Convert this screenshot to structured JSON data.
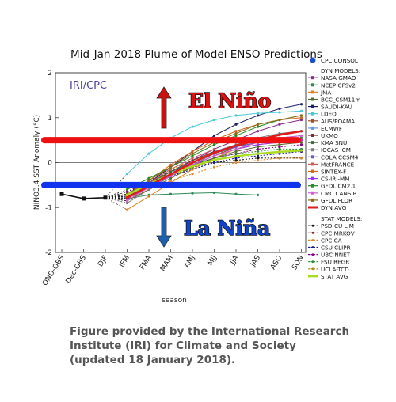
{
  "chart_data": {
    "type": "line",
    "title": "Mid-Jan 2018 Plume of Model ENSO Predictions",
    "xlabel": "season",
    "ylabel": "NINO3.4 SST Anomaly (°C)",
    "ylim": [
      -2,
      2
    ],
    "yticks": [
      "2",
      "1",
      "0",
      "-1",
      "-2"
    ],
    "categories": [
      "OND-OBS",
      "Dec-OBS",
      "DJF",
      "JFM",
      "FMA",
      "MAM",
      "AMJ",
      "MJJ",
      "JJA",
      "JAS",
      "ASO",
      "SON"
    ],
    "watermark": "IRI/CPC",
    "annotations": {
      "el_nino": "El Niño",
      "la_nina": "La Niña"
    },
    "thresholds": [
      {
        "value": 0.5,
        "color": "#ee1111"
      },
      {
        "value": -0.5,
        "color": "#1133ee"
      }
    ],
    "observed": {
      "name": "CPC CONSOL",
      "values": [
        -0.7,
        -0.8,
        -0.78
      ]
    },
    "legend_consol": "CPC CONSOL",
    "legend_dyn_header": "DYN MODELS:",
    "legend_stat_header": "STAT MODELS:",
    "dyn_series": [
      {
        "name": "NASA GMAO",
        "color": "#8a2b8a",
        "values": [
          -0.72,
          -0.55,
          -0.25,
          0.05,
          0.3,
          0.5,
          0.7,
          0.85,
          0.95
        ]
      },
      {
        "name": "NCEP CFSv2",
        "color": "#2e8b57",
        "values": [
          -0.8,
          -0.72,
          -0.7,
          -0.68,
          -0.67,
          -0.7,
          -0.72,
          null,
          null
        ]
      },
      {
        "name": "JMA",
        "color": "#e08020",
        "values": [
          -1.05,
          -0.75,
          -0.45,
          -0.15,
          0.1,
          0.3,
          0.45,
          null,
          null
        ]
      },
      {
        "name": "BCC_CSM11m",
        "color": "#556b2f",
        "values": [
          -0.85,
          -0.6,
          -0.35,
          -0.1,
          0.1,
          0.25,
          0.35,
          0.4,
          0.45
        ]
      },
      {
        "name": "SAUDI-KAU",
        "color": "#20206a",
        "values": [
          -0.75,
          -0.45,
          -0.1,
          0.25,
          0.6,
          0.85,
          1.05,
          1.2,
          1.3
        ]
      },
      {
        "name": "LDEO",
        "color": "#48c8d8",
        "values": [
          -0.25,
          0.2,
          0.55,
          0.8,
          0.95,
          1.05,
          1.1,
          1.12,
          1.15
        ]
      },
      {
        "name": "AUS/POAMA",
        "color": "#a0522d",
        "values": [
          -0.85,
          -0.55,
          -0.3,
          -0.05,
          0.15,
          0.35,
          0.5,
          null,
          null
        ]
      },
      {
        "name": "ECMWF",
        "color": "#6495ed",
        "values": [
          -0.8,
          -0.5,
          -0.2,
          0.05,
          0.25,
          0.4,
          null,
          null,
          null
        ]
      },
      {
        "name": "UKMO",
        "color": "#7a3030",
        "values": [
          -0.8,
          -0.5,
          -0.2,
          0.05,
          0.25,
          null,
          null,
          null,
          null
        ]
      },
      {
        "name": "KMA SNU",
        "color": "#3a6e3a",
        "values": [
          -0.7,
          -0.45,
          -0.2,
          0.0,
          0.2,
          0.35,
          0.45,
          0.5,
          0.55
        ]
      },
      {
        "name": "IOCAS ICM",
        "color": "#7a7a7a",
        "values": [
          -0.9,
          -0.6,
          -0.3,
          -0.05,
          0.2,
          0.4,
          0.55,
          0.65,
          0.7
        ]
      },
      {
        "name": "COLA CCSM4",
        "color": "#6a5acd",
        "values": [
          -0.75,
          -0.5,
          -0.25,
          0.0,
          0.2,
          0.35,
          0.45,
          0.55,
          0.6
        ]
      },
      {
        "name": "MetFRANCE",
        "color": "#cd5c5c",
        "values": [
          -0.75,
          -0.45,
          -0.15,
          0.1,
          0.3,
          null,
          null,
          null,
          null
        ]
      },
      {
        "name": "SINTEX-F",
        "color": "#d2691e",
        "values": [
          -0.75,
          -0.4,
          -0.05,
          0.25,
          0.5,
          0.7,
          0.85,
          0.95,
          1.0
        ]
      },
      {
        "name": "CS-IRI-MM",
        "color": "#9b30ff",
        "values": [
          -0.8,
          -0.55,
          -0.3,
          -0.05,
          0.15,
          0.3,
          0.4,
          0.45,
          0.5
        ]
      },
      {
        "name": "GFDL CM2.1",
        "color": "#228b22",
        "values": [
          -0.6,
          -0.35,
          -0.1,
          0.15,
          0.4,
          0.6,
          0.8,
          0.95,
          1.05
        ]
      },
      {
        "name": "CMC CANSIP",
        "color": "#d060d0",
        "values": [
          -0.85,
          -0.55,
          -0.3,
          -0.05,
          0.15,
          0.3,
          0.45,
          0.55,
          0.6
        ]
      },
      {
        "name": "GFDL FLOR",
        "color": "#8b6914",
        "values": [
          -0.7,
          -0.4,
          -0.1,
          0.2,
          0.45,
          0.65,
          0.85,
          0.95,
          1.05
        ]
      }
    ],
    "dyn_avg": {
      "name": "DYN AVG",
      "color": "#dd1c1c",
      "values": [
        -0.78,
        -0.52,
        -0.26,
        0.0,
        0.22,
        0.38,
        0.5,
        0.62,
        0.7
      ]
    },
    "stat_series": [
      {
        "name": "PSD-CU LIM",
        "color": "#111111",
        "values": [
          -0.65,
          -0.45,
          -0.25,
          -0.1,
          0.0,
          0.05,
          0.1,
          0.1,
          0.1
        ]
      },
      {
        "name": "CPC MRKOV",
        "color": "#8b1a1a",
        "values": [
          -0.85,
          -0.55,
          -0.3,
          -0.1,
          0.05,
          0.15,
          0.2,
          0.25,
          0.25
        ]
      },
      {
        "name": "CPC CA",
        "color": "#e08a2c",
        "values": [
          -0.8,
          -0.6,
          -0.4,
          -0.25,
          -0.1,
          0.0,
          0.05,
          0.1,
          0.1
        ]
      },
      {
        "name": "CSU CLIPR",
        "color": "#1a1a8b",
        "values": [
          -0.7,
          -0.5,
          -0.3,
          -0.15,
          0.0,
          0.1,
          0.15,
          0.2,
          0.25
        ]
      },
      {
        "name": "UBC NNET",
        "color": "#8b008b",
        "values": [
          -0.65,
          -0.4,
          -0.2,
          -0.05,
          0.1,
          0.2,
          0.3,
          0.35,
          0.4
        ]
      },
      {
        "name": "FSU REGR",
        "color": "#2e8b2e",
        "values": [
          -0.75,
          -0.5,
          -0.25,
          -0.05,
          0.1,
          0.2,
          0.25,
          0.3,
          0.3
        ]
      },
      {
        "name": "UCLA-TCD",
        "color": "#b8860b",
        "values": [
          -0.6,
          -0.35,
          -0.15,
          0.05,
          0.2,
          0.3,
          0.4,
          0.45,
          0.5
        ]
      }
    ],
    "stat_avg": {
      "name": "STAT AVG",
      "color": "#aadd22",
      "values": [
        -0.72,
        -0.48,
        -0.26,
        -0.08,
        0.06,
        0.14,
        0.2,
        0.24,
        0.27
      ]
    }
  },
  "caption": "Figure provided by the International Research Institute (IRI) for Climate and Society (updated 18 January 2018)."
}
